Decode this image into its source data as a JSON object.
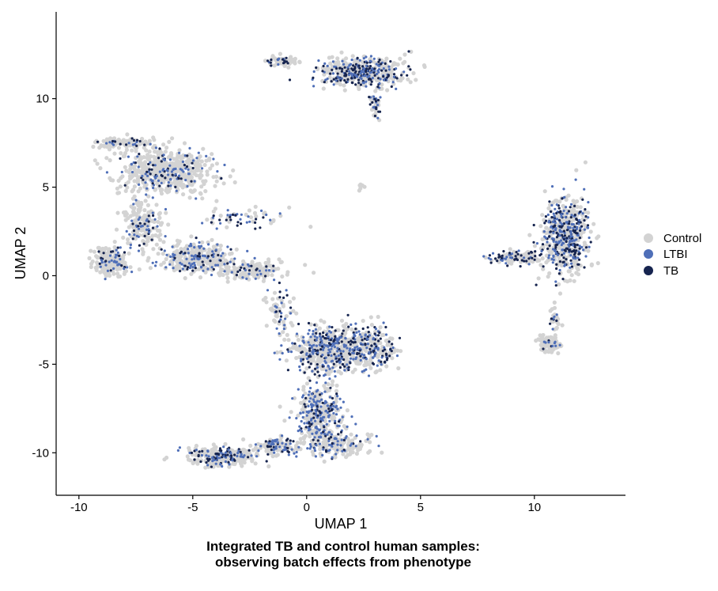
{
  "chart_data": {
    "type": "scatter",
    "title": "Integrated TB and control human samples:",
    "subtitle": "observing batch effects from phenotype",
    "xlabel": "UMAP 1",
    "ylabel": "UMAP 2",
    "xlim": [
      -11,
      14
    ],
    "ylim": [
      -12.4,
      14.9
    ],
    "xticks": [
      -10,
      -5,
      0,
      5,
      10
    ],
    "yticks": [
      -10,
      -5,
      0,
      5,
      10
    ],
    "xtick_labels": [
      "-10",
      "-5",
      "0",
      "5",
      "10"
    ],
    "ytick_labels": [
      "-10",
      "-5",
      "0",
      "5",
      "10"
    ],
    "grid": false,
    "legend_position": "right",
    "series": [
      {
        "name": "Control",
        "color": "#d3d3d3"
      },
      {
        "name": "LTBI",
        "color": "#4f6fb8"
      },
      {
        "name": "TB",
        "color": "#16244f"
      }
    ],
    "clusters": [
      {
        "center": [
          2.4,
          11.5
        ],
        "spread": [
          1.6,
          0.75
        ],
        "n": 520,
        "mix": [
          0.62,
          0.18,
          0.2
        ]
      },
      {
        "center": [
          -1.2,
          12.1
        ],
        "spread": [
          0.55,
          0.25
        ],
        "n": 70,
        "mix": [
          0.7,
          0.1,
          0.2
        ]
      },
      {
        "center": [
          3.0,
          9.6
        ],
        "spread": [
          0.25,
          0.7
        ],
        "n": 45,
        "mix": [
          0.5,
          0.25,
          0.25
        ]
      },
      {
        "center": [
          -6.2,
          5.9
        ],
        "spread": [
          1.9,
          1.2
        ],
        "n": 560,
        "mix": [
          0.76,
          0.16,
          0.08
        ]
      },
      {
        "center": [
          -8.0,
          7.5
        ],
        "spread": [
          1.2,
          0.25
        ],
        "n": 110,
        "mix": [
          0.8,
          0.12,
          0.08
        ]
      },
      {
        "center": [
          -7.2,
          3.0
        ],
        "spread": [
          0.7,
          1.2
        ],
        "n": 200,
        "mix": [
          0.75,
          0.17,
          0.08
        ]
      },
      {
        "center": [
          -8.6,
          0.8
        ],
        "spread": [
          0.7,
          0.7
        ],
        "n": 230,
        "mix": [
          0.8,
          0.13,
          0.07
        ]
      },
      {
        "center": [
          -4.8,
          1.0
        ],
        "spread": [
          1.5,
          0.8
        ],
        "n": 330,
        "mix": [
          0.7,
          0.2,
          0.1
        ]
      },
      {
        "center": [
          -2.4,
          0.3
        ],
        "spread": [
          1.3,
          0.45
        ],
        "n": 170,
        "mix": [
          0.8,
          0.12,
          0.08
        ]
      },
      {
        "center": [
          -2.8,
          3.3
        ],
        "spread": [
          1.7,
          0.6
        ],
        "n": 60,
        "mix": [
          0.45,
          0.3,
          0.25
        ]
      },
      {
        "center": [
          -1.2,
          -1.8
        ],
        "spread": [
          0.6,
          0.9
        ],
        "n": 60,
        "mix": [
          0.65,
          0.2,
          0.15
        ]
      },
      {
        "center": [
          1.0,
          -4.2
        ],
        "spread": [
          1.7,
          1.2
        ],
        "n": 620,
        "mix": [
          0.65,
          0.2,
          0.15
        ]
      },
      {
        "center": [
          2.8,
          -4.0
        ],
        "spread": [
          1.0,
          1.2
        ],
        "n": 220,
        "mix": [
          0.5,
          0.25,
          0.25
        ]
      },
      {
        "center": [
          0.6,
          -7.8
        ],
        "spread": [
          0.9,
          1.5
        ],
        "n": 420,
        "mix": [
          0.55,
          0.35,
          0.1
        ]
      },
      {
        "center": [
          1.3,
          -9.5
        ],
        "spread": [
          1.2,
          0.6
        ],
        "n": 170,
        "mix": [
          0.75,
          0.18,
          0.07
        ]
      },
      {
        "center": [
          -3.6,
          -10.2
        ],
        "spread": [
          1.3,
          0.45
        ],
        "n": 330,
        "mix": [
          0.7,
          0.15,
          0.15
        ]
      },
      {
        "center": [
          -1.3,
          -9.6
        ],
        "spread": [
          1.0,
          0.45
        ],
        "n": 130,
        "mix": [
          0.55,
          0.3,
          0.15
        ]
      },
      {
        "center": [
          11.4,
          2.2
        ],
        "spread": [
          0.9,
          1.9
        ],
        "n": 620,
        "mix": [
          0.55,
          0.23,
          0.22
        ]
      },
      {
        "center": [
          9.2,
          1.0
        ],
        "spread": [
          1.1,
          0.35
        ],
        "n": 130,
        "mix": [
          0.55,
          0.2,
          0.25
        ]
      },
      {
        "center": [
          10.6,
          -3.9
        ],
        "spread": [
          0.45,
          0.45
        ],
        "n": 90,
        "mix": [
          0.85,
          0.1,
          0.05
        ]
      },
      {
        "center": [
          10.9,
          -2.5
        ],
        "spread": [
          0.2,
          0.6
        ],
        "n": 30,
        "mix": [
          0.7,
          0.2,
          0.1
        ]
      },
      {
        "center": [
          2.4,
          5.0
        ],
        "spread": [
          0.25,
          0.25
        ],
        "n": 6,
        "mix": [
          1.0,
          0.0,
          0.0
        ]
      }
    ]
  }
}
